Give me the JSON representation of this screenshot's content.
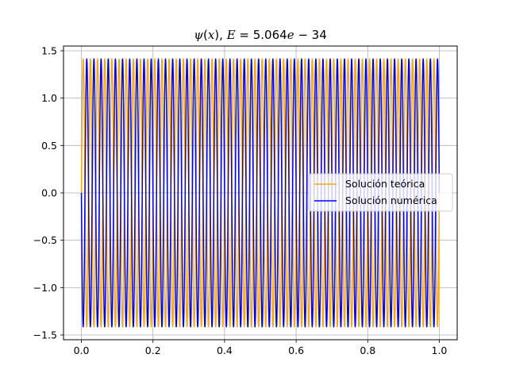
{
  "chart_data": {
    "type": "line",
    "title": {
      "psi": "ψ",
      "open_paren": "(",
      "x_var": "x",
      "close_paren": "), ",
      "e_var": "E",
      "equals": " = 5.064",
      "e_char": "e",
      "exponent": " − 34"
    },
    "xlabel": "",
    "ylabel": "",
    "xlim": [
      -0.05,
      1.05
    ],
    "ylim": [
      -1.55,
      1.55
    ],
    "xticks": [
      0.0,
      0.2,
      0.4,
      0.6,
      0.8,
      1.0
    ],
    "xtick_labels": [
      "0.0",
      "0.2",
      "0.4",
      "0.6",
      "0.8",
      "1.0"
    ],
    "yticks": [
      -1.5,
      -1.0,
      -0.5,
      0.0,
      0.5,
      1.0,
      1.5
    ],
    "ytick_labels": [
      "−1.5",
      "−1.0",
      "−0.5",
      "0.0",
      "0.5",
      "1.0",
      "1.5"
    ],
    "grid": true,
    "legend_position": "center-right",
    "series": [
      {
        "name": "Solución teórica",
        "color": "#ffa500",
        "function": "sqrt(2)*sin(n*pi*x)",
        "n": 100,
        "x_range": [
          0.0,
          1.0
        ],
        "amplitude": 1.414
      },
      {
        "name": "Solución numérica",
        "color": "#0000ff",
        "function": "-sqrt(2)*sin(n*pi*x)",
        "n": 100,
        "x_range": [
          0.0,
          1.0
        ],
        "amplitude": 1.414
      }
    ]
  }
}
